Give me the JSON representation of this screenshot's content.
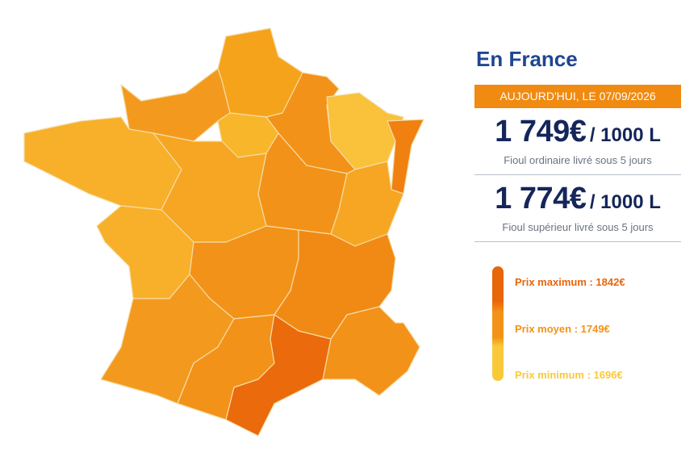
{
  "header": {
    "title": "En France",
    "date": "AUJOURD'HUI, LE 07/09/2026"
  },
  "prices": [
    {
      "amount": "1 749€",
      "unit": "/ 1000 L",
      "description": "Fioul ordinaire livré sous 5 jours"
    },
    {
      "amount": "1 774€",
      "unit": "/ 1000 L",
      "description": "Fioul supérieur livré sous 5 jours"
    }
  ],
  "legend": [
    {
      "label": "Prix maximum : 1842€",
      "color": "#e8650a"
    },
    {
      "label": "Prix moyen : 1749€",
      "color": "#f39218"
    },
    {
      "label": "Prix minimum : 1696€",
      "color": "#f9c93a"
    }
  ]
}
